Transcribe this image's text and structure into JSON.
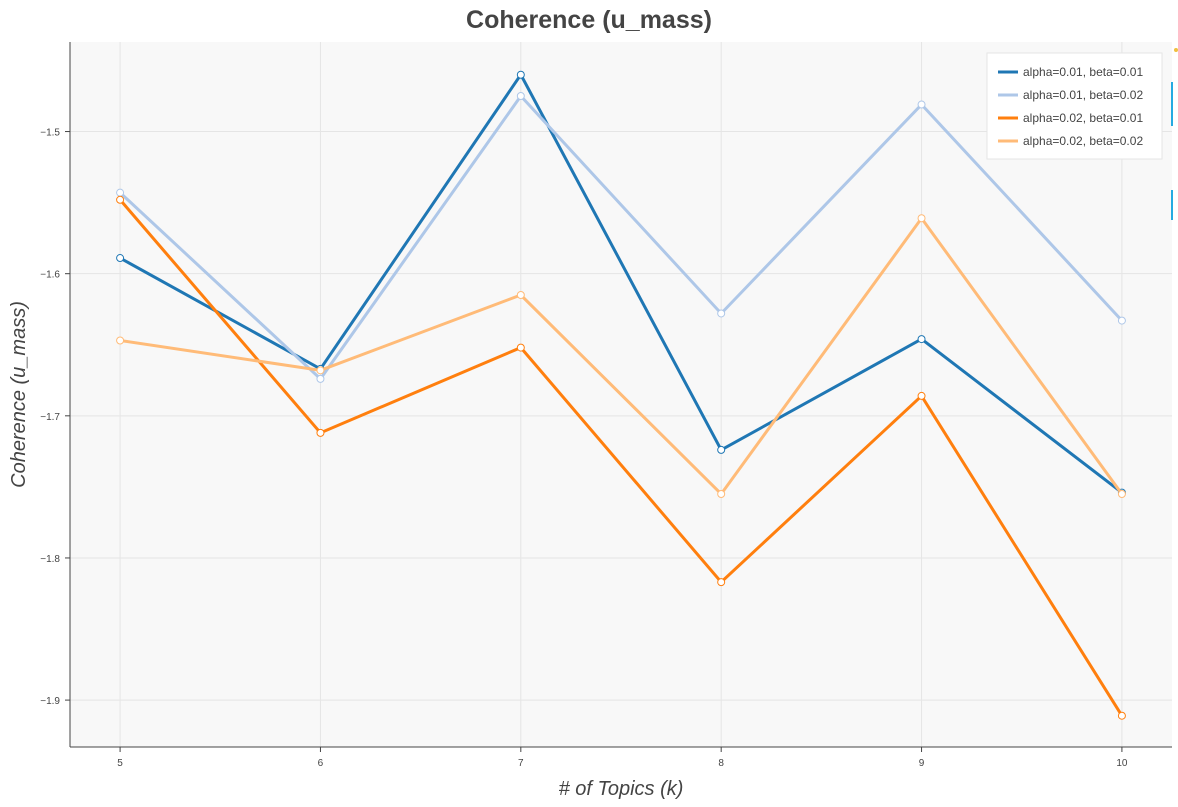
{
  "chart_data": {
    "type": "line",
    "title": "Coherence (u_mass)",
    "xlabel": "# of Topics (k)",
    "ylabel": "Coherence (u_mass)",
    "x": [
      5,
      6,
      7,
      8,
      9,
      10
    ],
    "x_ticks": [
      "5",
      "6",
      "7",
      "8",
      "9",
      "10"
    ],
    "y_ticks": [
      -1.5,
      -1.6,
      -1.7,
      -1.8,
      -1.9
    ],
    "y_tick_labels": [
      "−1.5",
      "−1.6",
      "−1.7",
      "−1.8",
      "−1.9"
    ],
    "xlim": [
      4.75,
      10.25
    ],
    "ylim": [
      -1.933,
      -1.437
    ],
    "grid": true,
    "legend_position": "top-right",
    "series": [
      {
        "name": "alpha=0.01, beta=0.01",
        "color": "#1f77b4",
        "values": [
          -1.589,
          -1.667,
          -1.46,
          -1.724,
          -1.646,
          -1.754
        ]
      },
      {
        "name": "alpha=0.01, beta=0.02",
        "color": "#aec7e8",
        "values": [
          -1.543,
          -1.674,
          -1.475,
          -1.628,
          -1.481,
          -1.633
        ]
      },
      {
        "name": "alpha=0.02, beta=0.01",
        "color": "#ff7f0e",
        "values": [
          -1.548,
          -1.712,
          -1.652,
          -1.817,
          -1.686,
          -1.911
        ]
      },
      {
        "name": "alpha=0.02, beta=0.02",
        "color": "#ffbb78",
        "values": [
          -1.647,
          -1.668,
          -1.615,
          -1.755,
          -1.561,
          -1.755
        ]
      }
    ]
  }
}
